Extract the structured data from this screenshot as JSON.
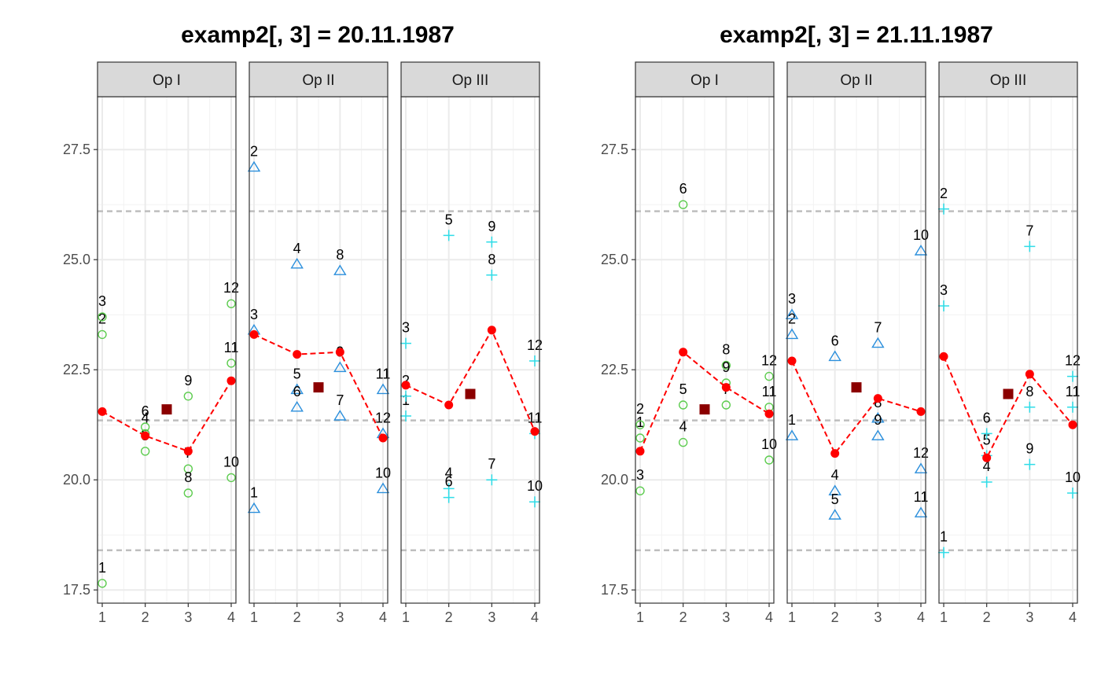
{
  "chart_data": [
    {
      "type": "scatter",
      "title": "examp2[, 3] = 20.11.1987",
      "ylim": [
        17.2,
        28.7
      ],
      "y_ticks": [
        17.5,
        20.0,
        22.5,
        25.0,
        27.5
      ],
      "y_tick_labels": [
        "17.5",
        "20.0",
        "22.5",
        "25.0",
        "27.5"
      ],
      "x_ticks": [
        1,
        2,
        3,
        4
      ],
      "x_tick_labels": [
        "1",
        "2",
        "3",
        "4"
      ],
      "reference_lines": [
        18.4,
        21.35,
        26.1
      ],
      "panels": [
        {
          "label": "Op I",
          "marker": "circle",
          "points": [
            {
              "label": "1",
              "x": 1,
              "y": 17.65
            },
            {
              "label": "2",
              "x": 1,
              "y": 23.3
            },
            {
              "label": "3",
              "x": 1,
              "y": 23.7
            },
            {
              "label": "4",
              "x": 2,
              "y": 21.05
            },
            {
              "label": "5",
              "x": 2,
              "y": 20.65
            },
            {
              "label": "6",
              "x": 2,
              "y": 21.2
            },
            {
              "label": "7",
              "x": 3,
              "y": 20.25
            },
            {
              "label": "8",
              "x": 3,
              "y": 19.7
            },
            {
              "label": "9",
              "x": 3,
              "y": 21.9
            },
            {
              "label": "10",
              "x": 4,
              "y": 20.05
            },
            {
              "label": "11",
              "x": 4,
              "y": 22.65
            },
            {
              "label": "12",
              "x": 4,
              "y": 24.0
            }
          ],
          "means": [
            21.55,
            21.0,
            20.65,
            22.25
          ],
          "grand_mean": 21.6
        },
        {
          "label": "Op II",
          "marker": "triangle",
          "points": [
            {
              "label": "1",
              "x": 1,
              "y": 19.35
            },
            {
              "label": "2",
              "x": 1,
              "y": 27.1
            },
            {
              "label": "3",
              "x": 1,
              "y": 23.4
            },
            {
              "label": "4",
              "x": 2,
              "y": 24.9
            },
            {
              "label": "5",
              "x": 2,
              "y": 22.05
            },
            {
              "label": "6",
              "x": 2,
              "y": 21.65
            },
            {
              "label": "7",
              "x": 3,
              "y": 21.45
            },
            {
              "label": "8",
              "x": 3,
              "y": 24.75
            },
            {
              "label": "9",
              "x": 3,
              "y": 22.55
            },
            {
              "label": "10",
              "x": 4,
              "y": 19.8
            },
            {
              "label": "11",
              "x": 4,
              "y": 22.05
            },
            {
              "label": "12",
              "x": 4,
              "y": 21.05
            }
          ],
          "means": [
            23.3,
            22.85,
            22.9,
            20.95
          ],
          "grand_mean": 22.1
        },
        {
          "label": "Op III",
          "marker": "plus",
          "points": [
            {
              "label": "1",
              "x": 1,
              "y": 21.45
            },
            {
              "label": "2",
              "x": 1,
              "y": 21.9
            },
            {
              "label": "3",
              "x": 1,
              "y": 23.1
            },
            {
              "label": "4",
              "x": 2,
              "y": 19.8
            },
            {
              "label": "5",
              "x": 2,
              "y": 25.55
            },
            {
              "label": "6",
              "x": 2,
              "y": 19.6
            },
            {
              "label": "7",
              "x": 3,
              "y": 20.0
            },
            {
              "label": "8",
              "x": 3,
              "y": 24.65
            },
            {
              "label": "9",
              "x": 3,
              "y": 25.4
            },
            {
              "label": "10",
              "x": 4,
              "y": 19.5
            },
            {
              "label": "11",
              "x": 4,
              "y": 21.05
            },
            {
              "label": "12",
              "x": 4,
              "y": 22.7
            }
          ],
          "means": [
            22.15,
            21.7,
            23.4,
            21.1
          ],
          "grand_mean": 21.95
        }
      ]
    },
    {
      "type": "scatter",
      "title": "examp2[, 3] = 21.11.1987",
      "ylim": [
        17.2,
        28.7
      ],
      "y_ticks": [
        17.5,
        20.0,
        22.5,
        25.0,
        27.5
      ],
      "y_tick_labels": [
        "17.5",
        "20.0",
        "22.5",
        "25.0",
        "27.5"
      ],
      "x_ticks": [
        1,
        2,
        3,
        4
      ],
      "x_tick_labels": [
        "1",
        "2",
        "3",
        "4"
      ],
      "reference_lines": [
        18.4,
        21.35,
        26.1
      ],
      "panels": [
        {
          "label": "Op I",
          "marker": "circle",
          "points": [
            {
              "label": "1",
              "x": 1,
              "y": 20.95
            },
            {
              "label": "2",
              "x": 1,
              "y": 21.25
            },
            {
              "label": "3",
              "x": 1,
              "y": 19.75
            },
            {
              "label": "4",
              "x": 2,
              "y": 20.85
            },
            {
              "label": "5",
              "x": 2,
              "y": 21.7
            },
            {
              "label": "6",
              "x": 2,
              "y": 26.25
            },
            {
              "label": "7",
              "x": 3,
              "y": 21.7
            },
            {
              "label": "8",
              "x": 3,
              "y": 22.6
            },
            {
              "label": "9",
              "x": 3,
              "y": 22.2
            },
            {
              "label": "10",
              "x": 4,
              "y": 20.45
            },
            {
              "label": "11",
              "x": 4,
              "y": 21.65
            },
            {
              "label": "12",
              "x": 4,
              "y": 22.35
            }
          ],
          "means": [
            20.65,
            22.9,
            22.1,
            21.5
          ],
          "grand_mean": 21.6
        },
        {
          "label": "Op II",
          "marker": "triangle",
          "points": [
            {
              "label": "1",
              "x": 1,
              "y": 21.0
            },
            {
              "label": "2",
              "x": 1,
              "y": 23.3
            },
            {
              "label": "3",
              "x": 1,
              "y": 23.75
            },
            {
              "label": "4",
              "x": 2,
              "y": 19.75
            },
            {
              "label": "5",
              "x": 2,
              "y": 19.2
            },
            {
              "label": "6",
              "x": 2,
              "y": 22.8
            },
            {
              "label": "7",
              "x": 3,
              "y": 23.1
            },
            {
              "label": "8",
              "x": 3,
              "y": 21.4
            },
            {
              "label": "9",
              "x": 3,
              "y": 21.0
            },
            {
              "label": "10",
              "x": 4,
              "y": 25.2
            },
            {
              "label": "11",
              "x": 4,
              "y": 19.25
            },
            {
              "label": "12",
              "x": 4,
              "y": 20.25
            }
          ],
          "means": [
            22.7,
            20.6,
            21.85,
            21.55
          ],
          "grand_mean": 22.1
        },
        {
          "label": "Op III",
          "marker": "plus",
          "points": [
            {
              "label": "1",
              "x": 1,
              "y": 18.35
            },
            {
              "label": "2",
              "x": 1,
              "y": 26.15
            },
            {
              "label": "3",
              "x": 1,
              "y": 23.95
            },
            {
              "label": "4",
              "x": 2,
              "y": 19.95
            },
            {
              "label": "5",
              "x": 2,
              "y": 20.55
            },
            {
              "label": "6",
              "x": 2,
              "y": 21.05
            },
            {
              "label": "7",
              "x": 3,
              "y": 25.3
            },
            {
              "label": "8",
              "x": 3,
              "y": 21.65
            },
            {
              "label": "9",
              "x": 3,
              "y": 20.35
            },
            {
              "label": "10",
              "x": 4,
              "y": 19.7
            },
            {
              "label": "11",
              "x": 4,
              "y": 21.65
            },
            {
              "label": "12",
              "x": 4,
              "y": 22.35
            }
          ],
          "means": [
            22.8,
            20.5,
            22.4,
            21.25
          ],
          "grand_mean": 21.95
        }
      ]
    }
  ],
  "colors": {
    "circle_points": "#5dcc4f",
    "triangle_points": "#2b8fdc",
    "plus_points": "#2fdde8",
    "mean_points": "#ff0000",
    "mean_line": "#ff0000",
    "grand_mean": "#8b0000",
    "reference_lines": "#bebebe",
    "grid_major": "#ebebeb",
    "grid_minor": "#f2f2f2",
    "strip_fill": "#d9d9d9",
    "panel_border": "#333333"
  }
}
